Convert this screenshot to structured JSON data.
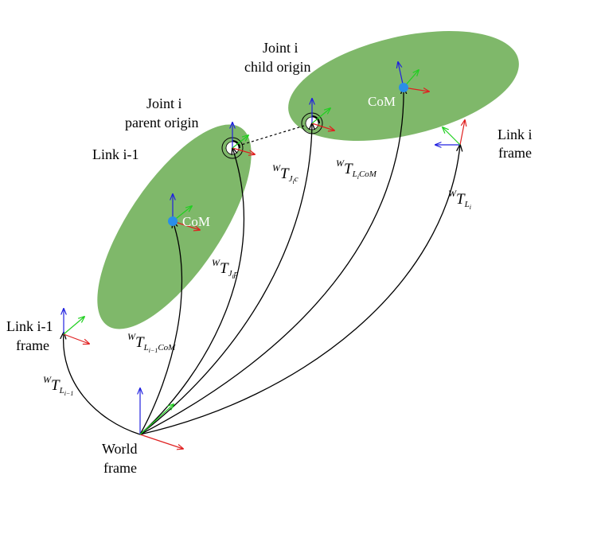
{
  "labels": {
    "joint_i_child_l1": "Joint i",
    "joint_i_child_l2": "child origin",
    "joint_i_parent_l1": "Joint i",
    "joint_i_parent_l2": "parent origin",
    "link_im1": "Link i-1",
    "link_im1_frame_l1": "Link i-1",
    "link_im1_frame_l2": "frame",
    "link_i_frame_l1": "Link i",
    "link_i_frame_l2": "frame",
    "world_frame_l1": "World",
    "world_frame_l2": "frame",
    "com_link_im1": "CoM",
    "com_link_i": "CoM"
  },
  "transforms": {
    "t_jip": {
      "sup": "W",
      "main": "T",
      "sub": "J",
      "subsub": "i",
      "tail": "p"
    },
    "t_jic": {
      "sup": "W",
      "main": "T",
      "sub": "J",
      "subsub": "i",
      "tail": "c"
    },
    "t_licom": {
      "sup": "W",
      "main": "T",
      "sub": "L",
      "subsub": "i",
      "tail": "CoM"
    },
    "t_li": {
      "sup": "W",
      "main": "T",
      "sub": "L",
      "subsub": "i",
      "tail": ""
    },
    "t_lim1com": {
      "sup": "W",
      "main": "T",
      "sub": "L",
      "subsub": "i−1",
      "tail": "CoM"
    },
    "t_lim1": {
      "sup": "W",
      "main": "T",
      "sub": "L",
      "subsub": "i−1",
      "tail": ""
    }
  },
  "colors": {
    "link_fill": "#7fb86a",
    "com_marker": "#2a8ee8",
    "x_axis": "#e02020",
    "y_axis": "#20d020",
    "z_axis": "#2020e0"
  }
}
